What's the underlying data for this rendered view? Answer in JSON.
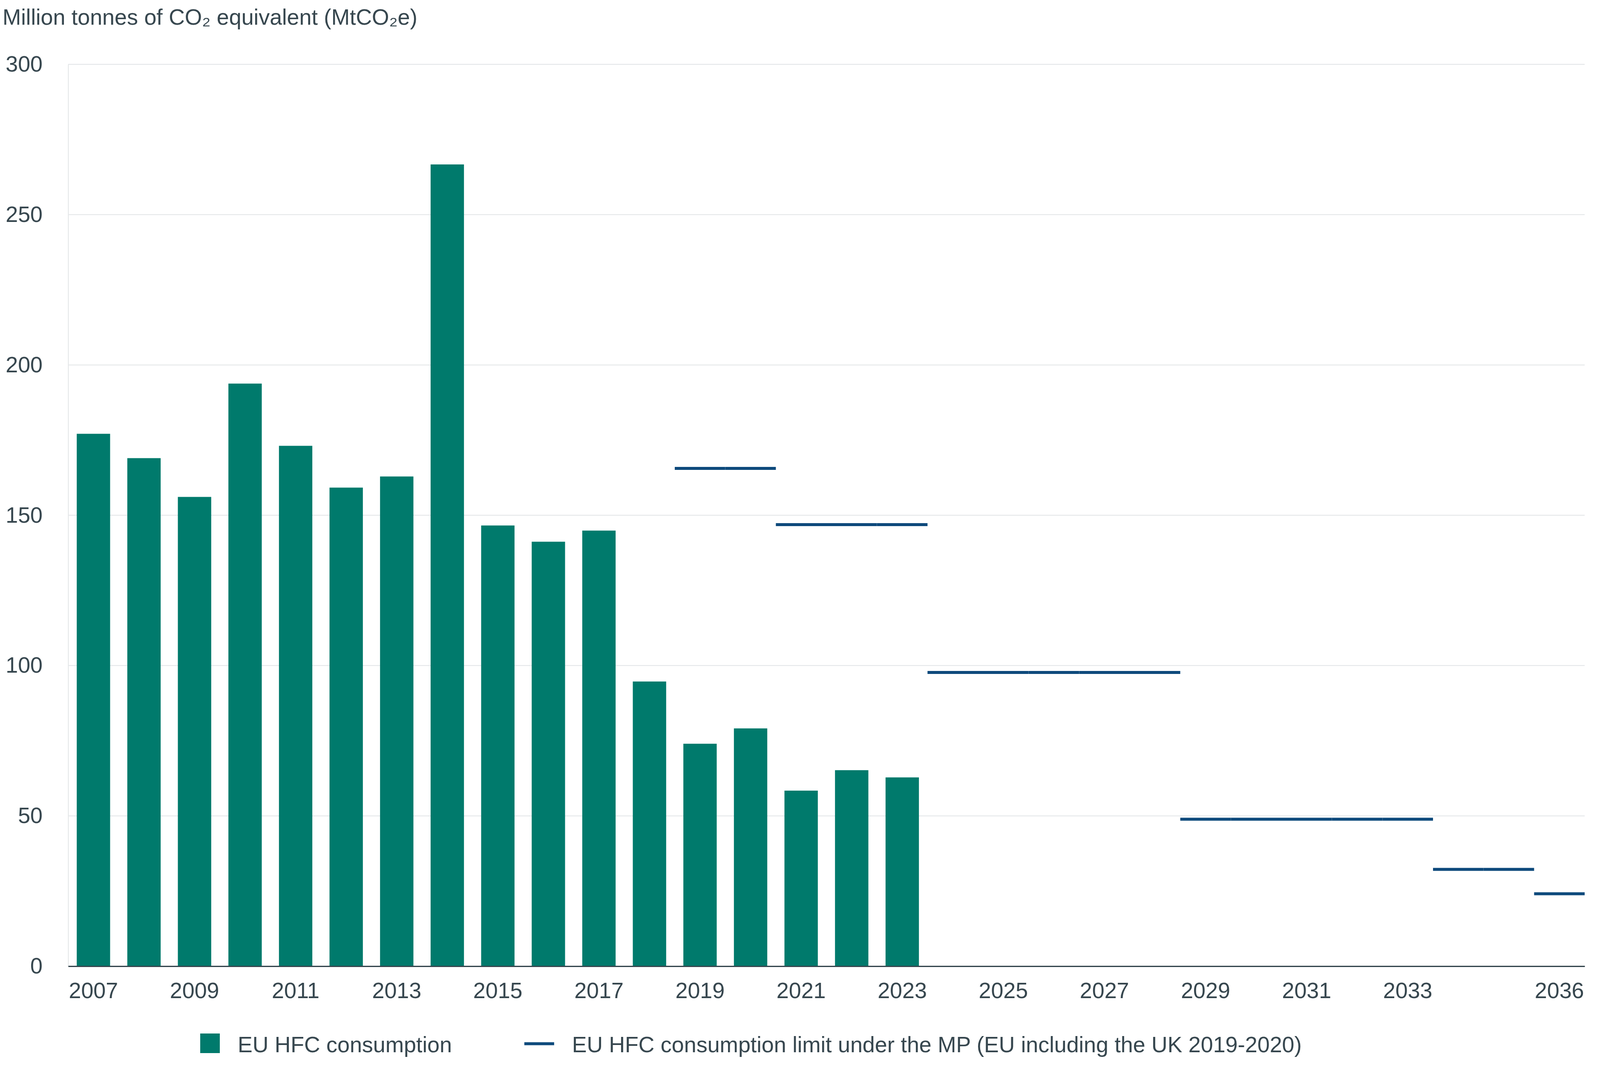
{
  "chart_data": {
    "type": "bar",
    "ylabel": "Million tonnes of CO₂ equivalent (MtCO₂e)",
    "categories": [
      "2007",
      null,
      "2009",
      null,
      "2011",
      null,
      "2013",
      null,
      "2015",
      null,
      "2017",
      null,
      "2019",
      null,
      "2021",
      null,
      "2023",
      null,
      "2025",
      null,
      "2027",
      null,
      "2029",
      null,
      "2031",
      null,
      "2033",
      null,
      null,
      "2036"
    ],
    "series": [
      {
        "name": "EU HFC consumption",
        "type": "bar",
        "color": "#007a6c",
        "values": [
          177.1,
          169.0,
          156.1,
          193.8,
          173.1,
          159.2,
          162.9,
          266.7,
          146.6,
          141.2,
          144.9,
          94.7,
          74.0,
          79.1,
          58.4,
          65.2,
          62.8,
          null,
          null,
          null,
          null,
          null,
          null,
          null,
          null,
          null,
          null,
          null,
          null,
          null
        ]
      },
      {
        "name": "EU HFC consumption limit under the MP (EU including the UK 2019-2020)",
        "type": "step",
        "color": "#0e4a7c",
        "values": [
          null,
          null,
          null,
          null,
          null,
          null,
          null,
          null,
          null,
          null,
          null,
          null,
          165.6,
          165.6,
          146.9,
          146.9,
          146.9,
          97.7,
          97.7,
          97.7,
          97.7,
          97.7,
          48.9,
          48.9,
          48.9,
          48.9,
          48.9,
          32.2,
          32.2,
          24.1
        ]
      }
    ],
    "ylim": [
      0,
      300
    ],
    "yticks": [
      0,
      50,
      100,
      150,
      200,
      250,
      300
    ],
    "grid": true,
    "legend": "bottom"
  }
}
